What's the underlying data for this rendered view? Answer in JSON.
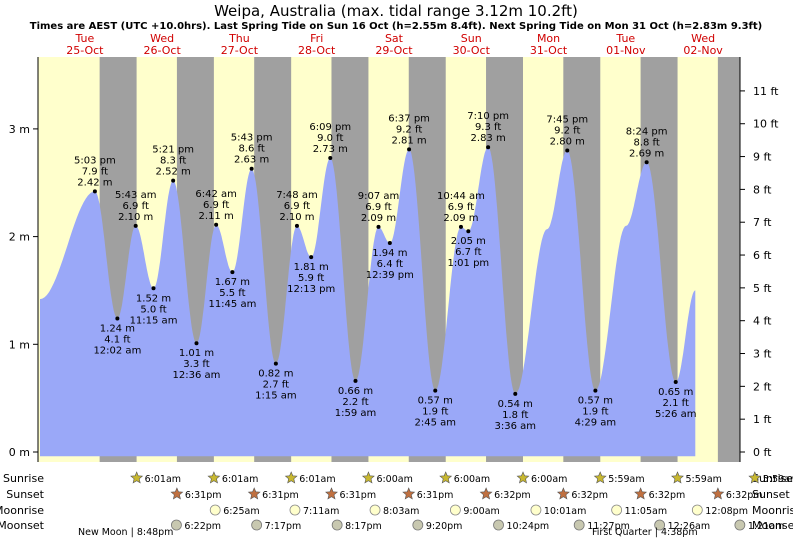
{
  "title": "Weipa, Australia (max. tidal range 3.12m 10.2ft)",
  "subtitle": "Times are AEST (UTC +10.0hrs). Last Spring Tide on Sun 16 Oct (h=2.55m 8.4ft). Next Spring Tide on Mon 31 Oct (h=2.83m 9.3ft)",
  "colors": {
    "day": "#ffffcc",
    "night": "#a0a0a0",
    "tide": "#9aa8f8",
    "day_label": "#d00000",
    "sun_icon": "#c8b830",
    "moon_icon": "#ffffcc",
    "moonset_icon": "#c8c8b0"
  },
  "chart_data": {
    "type": "area",
    "title": "Weipa, Australia (max. tidal range 3.12m 10.2ft)",
    "x_unit": "hours from Tue 25-Oct 00:00",
    "x_range": [
      0,
      192
    ],
    "ylim_m": [
      -0.05,
      3.65
    ],
    "left_axis": {
      "ticks": [
        0,
        1,
        2,
        3
      ],
      "labels": [
        "0 m",
        "1 m",
        "2 m",
        "3 m"
      ]
    },
    "right_axis": {
      "ticks_ft": [
        0,
        1,
        2,
        3,
        4,
        5,
        6,
        7,
        8,
        9,
        10,
        11
      ],
      "labels": [
        "0 ft",
        "1 ft",
        "2 ft",
        "3 ft",
        "4 ft",
        "5 ft",
        "6 ft",
        "7 ft",
        "8 ft",
        "9 ft",
        "10 ft",
        "11 ft"
      ]
    },
    "days": [
      {
        "dow": "Tue",
        "date": "25-Oct"
      },
      {
        "dow": "Wed",
        "date": "26-Oct"
      },
      {
        "dow": "Thu",
        "date": "27-Oct"
      },
      {
        "dow": "Fri",
        "date": "28-Oct"
      },
      {
        "dow": "Sat",
        "date": "29-Oct"
      },
      {
        "dow": "Sun",
        "date": "30-Oct"
      },
      {
        "dow": "Mon",
        "date": "31-Oct"
      },
      {
        "dow": "Tue",
        "date": "01-Nov"
      },
      {
        "dow": "Wed",
        "date": "02-Nov"
      }
    ],
    "series": [
      {
        "name": "tide",
        "points": [
          {
            "t": 0,
            "h": 1.42,
            "label": ""
          },
          {
            "t": 17.05,
            "h": 2.42,
            "time": "5:03 pm",
            "ft": "7.9 ft",
            "m": "2.42 m",
            "pos": "above"
          },
          {
            "t": 24.03,
            "h": 1.24,
            "time": "12:02 am",
            "ft": "4.1 ft",
            "m": "1.24 m",
            "pos": "below"
          },
          {
            "t": 29.72,
            "h": 2.1,
            "time": "5:43 am",
            "ft": "6.9 ft",
            "m": "2.10 m",
            "pos": "above"
          },
          {
            "t": 35.25,
            "h": 1.52,
            "time": "11:15 am",
            "ft": "5.0 ft",
            "m": "1.52 m",
            "pos": "below"
          },
          {
            "t": 41.35,
            "h": 2.52,
            "time": "5:21 pm",
            "ft": "8.3 ft",
            "m": "2.52 m",
            "pos": "above"
          },
          {
            "t": 48.6,
            "h": 1.01,
            "time": "12:36 am",
            "ft": "3.3 ft",
            "m": "1.01 m",
            "pos": "below"
          },
          {
            "t": 54.7,
            "h": 2.11,
            "time": "6:42 am",
            "ft": "6.9 ft",
            "m": "2.11 m",
            "pos": "above"
          },
          {
            "t": 59.75,
            "h": 1.67,
            "time": "11:45 am",
            "ft": "5.5 ft",
            "m": "1.67 m",
            "pos": "below"
          },
          {
            "t": 65.72,
            "h": 2.63,
            "time": "5:43 pm",
            "ft": "8.6 ft",
            "m": "2.63 m",
            "pos": "above"
          },
          {
            "t": 73.25,
            "h": 0.82,
            "time": "1:15 am",
            "ft": "2.7 ft",
            "m": "0.82 m",
            "pos": "below"
          },
          {
            "t": 79.8,
            "h": 2.1,
            "time": "7:48 am",
            "ft": "6.9 ft",
            "m": "2.10 m",
            "pos": "above"
          },
          {
            "t": 84.22,
            "h": 1.81,
            "time": "12:13 pm",
            "ft": "5.9 ft",
            "m": "1.81 m",
            "pos": "below"
          },
          {
            "t": 90.15,
            "h": 2.73,
            "time": "6:09 pm",
            "ft": "9.0 ft",
            "m": "2.73 m",
            "pos": "above"
          },
          {
            "t": 97.98,
            "h": 0.66,
            "time": "1:59 am",
            "ft": "2.2 ft",
            "m": "0.66 m",
            "pos": "below"
          },
          {
            "t": 105.12,
            "h": 2.09,
            "time": "9:07 am",
            "ft": "6.9 ft",
            "m": "2.09 m",
            "pos": "above"
          },
          {
            "t": 108.65,
            "h": 1.94,
            "time": "12:39 pm",
            "ft": "6.4 ft",
            "m": "1.94 m",
            "pos": "below"
          },
          {
            "t": 114.62,
            "h": 2.81,
            "time": "6:37 pm",
            "ft": "9.2 ft",
            "m": "2.81 m",
            "pos": "above"
          },
          {
            "t": 122.75,
            "h": 0.57,
            "time": "2:45 am",
            "ft": "1.9 ft",
            "m": "0.57 m",
            "pos": "below"
          },
          {
            "t": 130.73,
            "h": 2.09,
            "time": "10:44 am",
            "ft": "6.9 ft",
            "m": "2.09 m",
            "pos": "above"
          },
          {
            "t": 133.02,
            "h": 2.05,
            "time": "1:01 pm",
            "ft": "6.7 ft",
            "m": "2.05 m",
            "pos": "below"
          },
          {
            "t": 139.17,
            "h": 2.83,
            "time": "7:10 pm",
            "ft": "9.3 ft",
            "m": "2.83 m",
            "pos": "above"
          },
          {
            "t": 147.6,
            "h": 0.54,
            "time": "3:36 am",
            "ft": "1.8 ft",
            "m": "0.54 m",
            "pos": "below"
          },
          {
            "t": 157.5,
            "h": 2.07,
            "label": ""
          },
          {
            "t": 163.75,
            "h": 2.8,
            "time": "7:45 pm",
            "ft": "9.2 ft",
            "m": "2.80 m",
            "pos": "above"
          },
          {
            "t": 172.48,
            "h": 0.57,
            "time": "4:29 am",
            "ft": "1.9 ft",
            "m": "0.57 m",
            "pos": "below"
          },
          {
            "t": 182.0,
            "h": 2.1,
            "label": ""
          },
          {
            "t": 188.4,
            "h": 2.69,
            "time": "8:24 pm",
            "ft": "8.8 ft",
            "m": "2.69 m",
            "pos": "above"
          },
          {
            "t": 197.43,
            "h": 0.65,
            "time": "5:26 am",
            "ft": "2.1 ft",
            "m": "0.65 m",
            "pos": "below"
          },
          {
            "t": 203.5,
            "h": 1.5,
            "label": ""
          }
        ]
      }
    ],
    "sun_moon": [
      {
        "day": 0,
        "sunrise": "",
        "sunset": "",
        "moonrise": "",
        "moonset": ""
      },
      {
        "day": 1,
        "sunrise": "6:01am",
        "sunset": "6:31pm",
        "moonrise": "",
        "moonset": "6:22pm"
      },
      {
        "day": 2,
        "sunrise": "6:01am",
        "sunset": "6:31pm",
        "moonrise": "6:25am",
        "moonset": "7:17pm"
      },
      {
        "day": 3,
        "sunrise": "6:01am",
        "sunset": "6:31pm",
        "moonrise": "7:11am",
        "moonset": "8:17pm"
      },
      {
        "day": 4,
        "sunrise": "6:00am",
        "sunset": "6:31pm",
        "moonrise": "8:03am",
        "moonset": "9:20pm"
      },
      {
        "day": 5,
        "sunrise": "6:00am",
        "sunset": "6:32pm",
        "moonrise": "9:00am",
        "moonset": "10:24pm"
      },
      {
        "day": 6,
        "sunrise": "6:00am",
        "sunset": "6:32pm",
        "moonrise": "10:01am",
        "moonset": "11:27pm"
      },
      {
        "day": 7,
        "sunrise": "5:59am",
        "sunset": "6:32pm",
        "moonrise": "11:05am",
        "moonset": ""
      },
      {
        "day": 8,
        "sunrise": "5:59am",
        "sunset": "6:32pm",
        "moonrise": "12:08pm",
        "moonset": "12:26am"
      },
      {
        "day": 9,
        "sunrise": "5:59am",
        "sunset": "",
        "moonrise": "",
        "moonset": "1:21am"
      }
    ],
    "moon_phases": [
      {
        "label": "New Moon",
        "time": "8:48pm"
      },
      {
        "label": "First Quarter",
        "time": "4:38pm"
      }
    ],
    "row_labels": [
      "Sunrise",
      "Sunset",
      "Moonrise",
      "Moonset"
    ]
  }
}
